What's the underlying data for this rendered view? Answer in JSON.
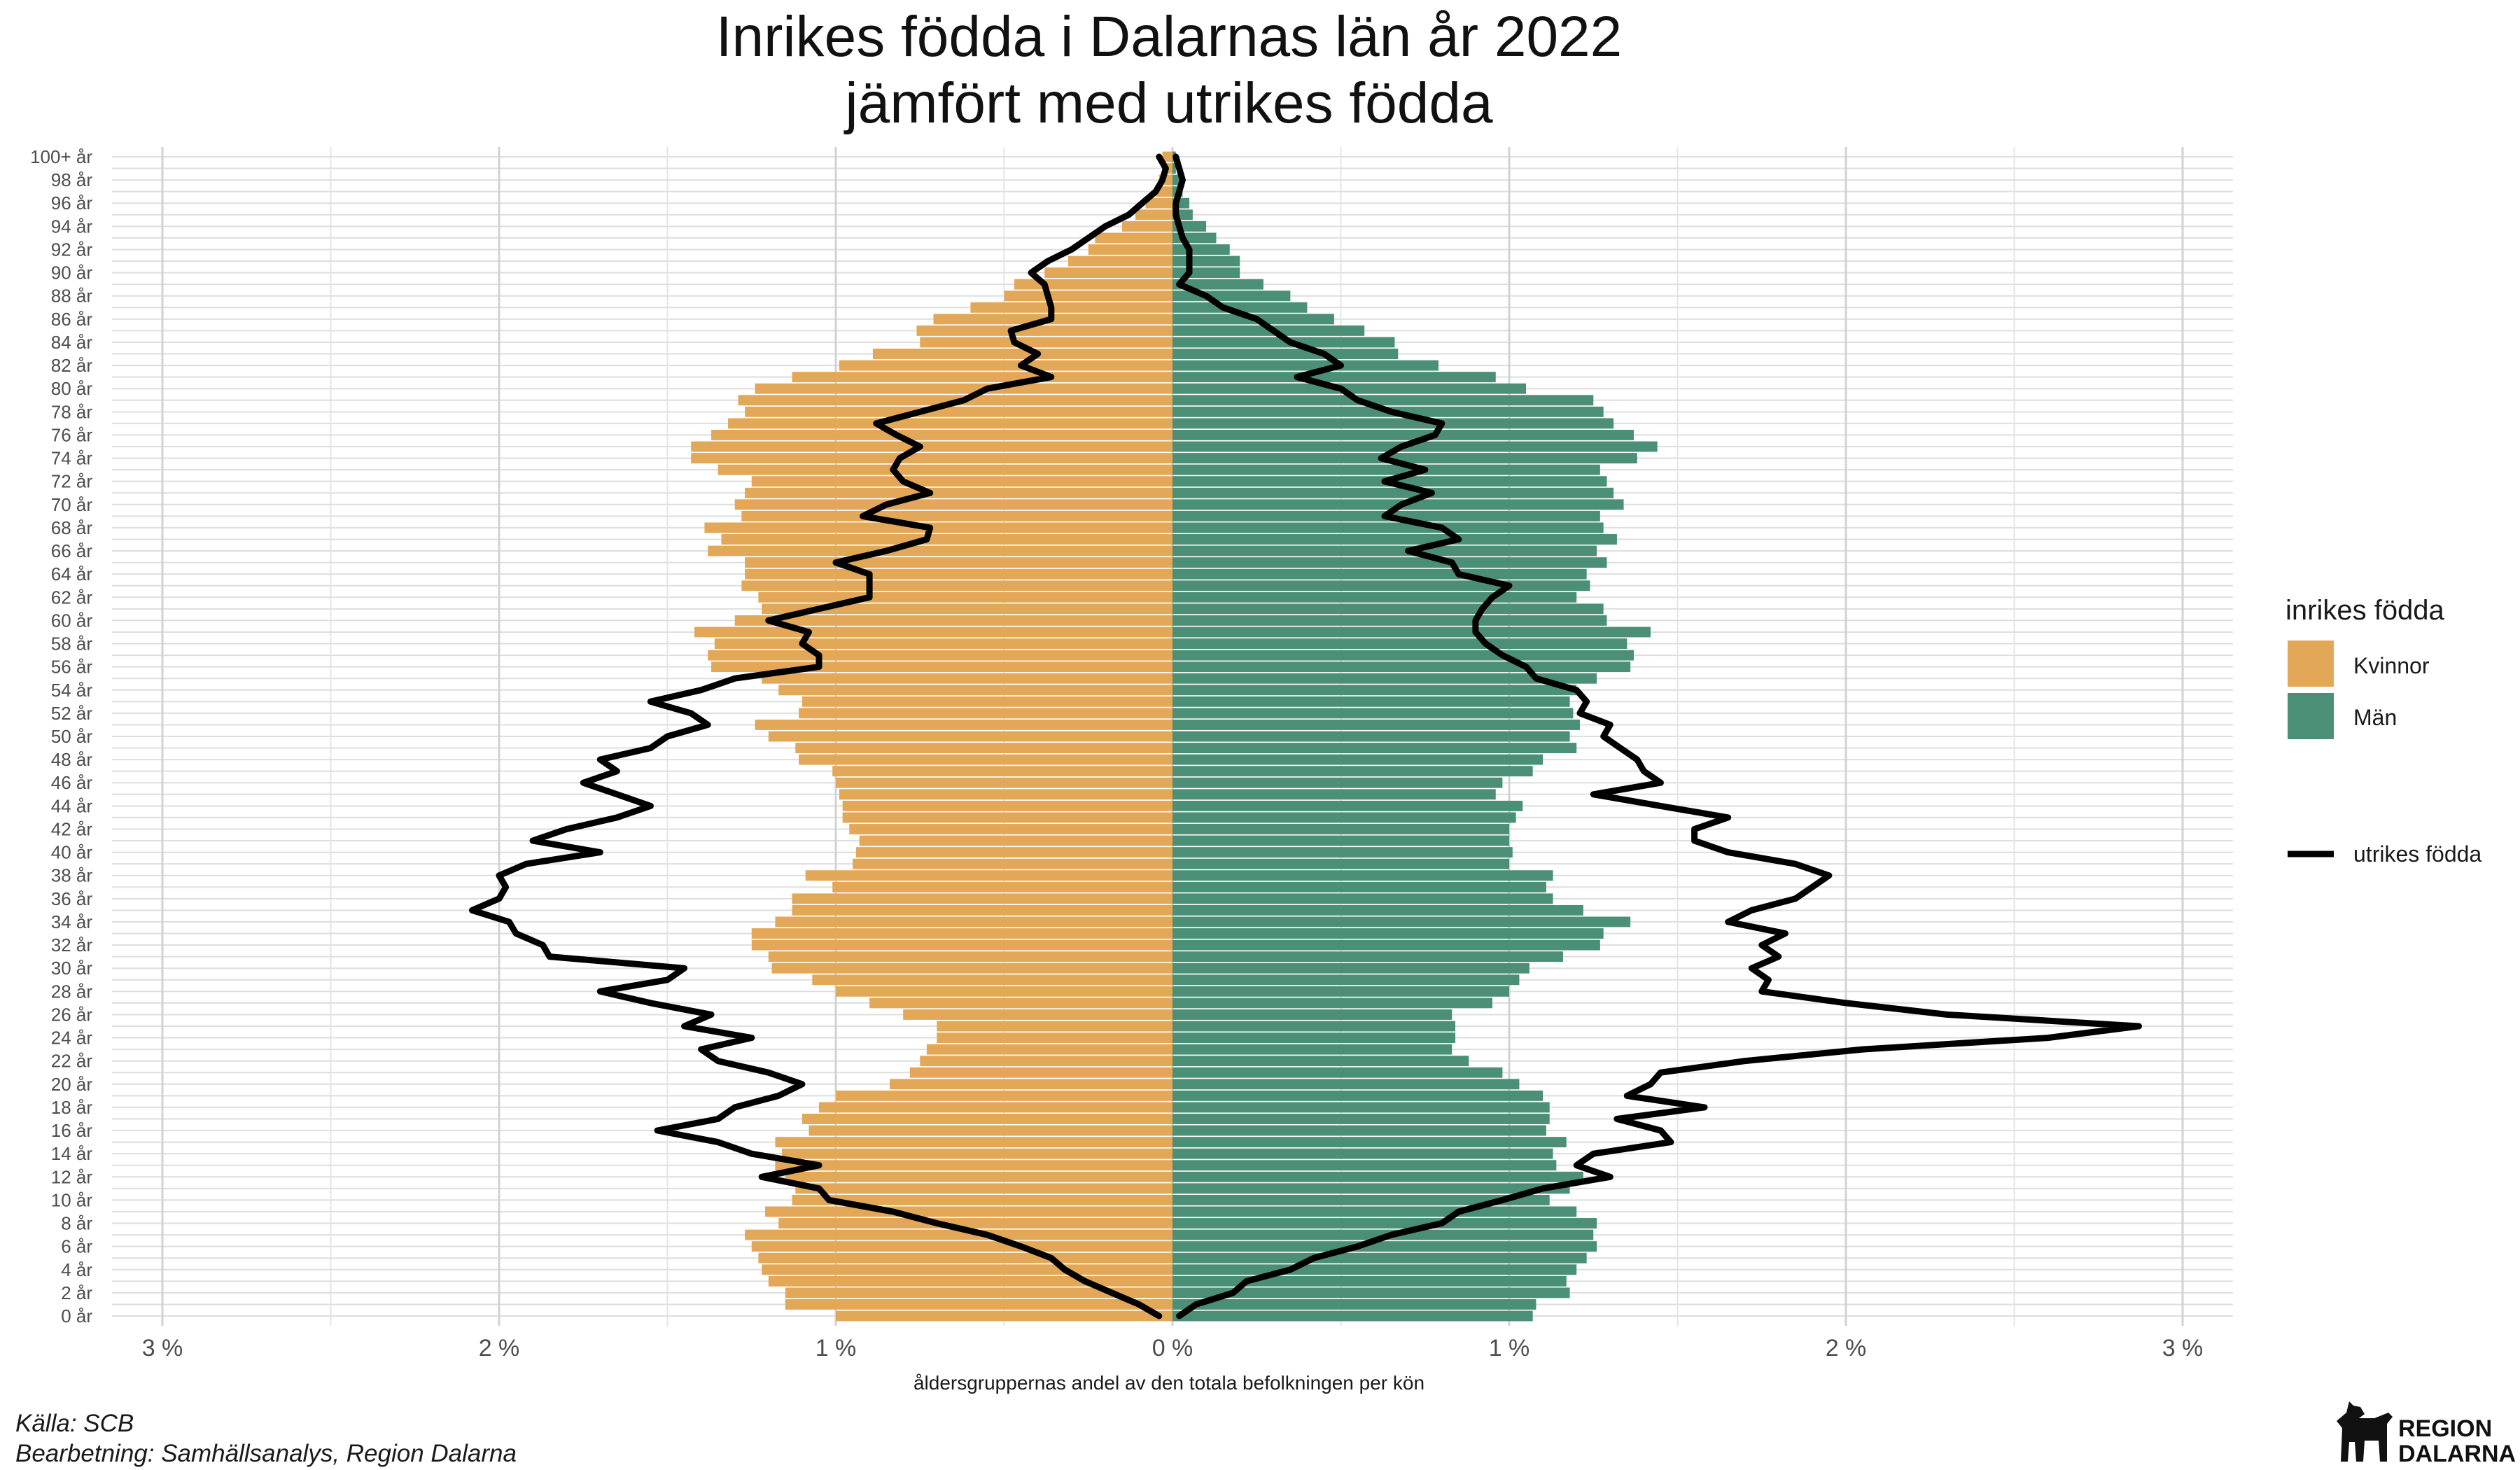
{
  "chart_data": {
    "type": "bar",
    "title": [
      "Inrikes födda i Dalarnas län år 2022",
      "jämfört med utrikes födda"
    ],
    "xlabel": "åldersgruppernas andel av den totala befolkningen per kön",
    "xlim": [
      -3,
      3
    ],
    "x_ticks": [
      -3,
      -2,
      -1,
      0,
      1,
      2,
      3
    ],
    "x_tick_labels": [
      "3 %",
      "2 %",
      "1 %",
      "0 %",
      "1 %",
      "2 %",
      "3 %"
    ],
    "y_tick_labels": [
      "0 år",
      "2 år",
      "4 år",
      "6 år",
      "8 år",
      "10 år",
      "12 år",
      "14 år",
      "16 år",
      "18 år",
      "20 år",
      "22 år",
      "24 år",
      "26 år",
      "28 år",
      "30 år",
      "32 år",
      "34 år",
      "36 år",
      "38 år",
      "40 år",
      "42 år",
      "44 år",
      "46 år",
      "48 år",
      "50 år",
      "52 år",
      "54 år",
      "56 år",
      "58 år",
      "60 år",
      "62 år",
      "64 år",
      "66 år",
      "68 år",
      "70 år",
      "72 år",
      "74 år",
      "76 år",
      "78 år",
      "80 år",
      "82 år",
      "84 år",
      "86 år",
      "88 år",
      "90 år",
      "92 år",
      "94 år",
      "96 år",
      "98 år",
      "100+ år"
    ],
    "ages": [
      0,
      1,
      2,
      3,
      4,
      5,
      6,
      7,
      8,
      9,
      10,
      11,
      12,
      13,
      14,
      15,
      16,
      17,
      18,
      19,
      20,
      21,
      22,
      23,
      24,
      25,
      26,
      27,
      28,
      29,
      30,
      31,
      32,
      33,
      34,
      35,
      36,
      37,
      38,
      39,
      40,
      41,
      42,
      43,
      44,
      45,
      46,
      47,
      48,
      49,
      50,
      51,
      52,
      53,
      54,
      55,
      56,
      57,
      58,
      59,
      60,
      61,
      62,
      63,
      64,
      65,
      66,
      67,
      68,
      69,
      70,
      71,
      72,
      73,
      74,
      75,
      76,
      77,
      78,
      79,
      80,
      81,
      82,
      83,
      84,
      85,
      86,
      87,
      88,
      89,
      90,
      91,
      92,
      93,
      94,
      95,
      96,
      97,
      98,
      99,
      100
    ],
    "legend_title": "inrikes födda",
    "series": [
      {
        "name": "Kvinnor",
        "color": "#E3A857",
        "values": [
          1.0,
          1.15,
          1.15,
          1.2,
          1.22,
          1.23,
          1.25,
          1.27,
          1.17,
          1.21,
          1.13,
          1.12,
          1.15,
          1.18,
          1.16,
          1.18,
          1.08,
          1.1,
          1.05,
          1.0,
          0.84,
          0.78,
          0.75,
          0.73,
          0.7,
          0.7,
          0.8,
          0.9,
          1.0,
          1.07,
          1.19,
          1.2,
          1.25,
          1.25,
          1.18,
          1.13,
          1.13,
          1.01,
          1.09,
          0.95,
          0.94,
          0.93,
          0.96,
          0.98,
          0.98,
          0.99,
          1.0,
          1.01,
          1.11,
          1.12,
          1.2,
          1.24,
          1.11,
          1.1,
          1.17,
          1.22,
          1.37,
          1.38,
          1.36,
          1.42,
          1.3,
          1.22,
          1.23,
          1.28,
          1.27,
          1.27,
          1.38,
          1.34,
          1.39,
          1.28,
          1.3,
          1.27,
          1.25,
          1.35,
          1.43,
          1.43,
          1.37,
          1.32,
          1.27,
          1.29,
          1.24,
          1.13,
          0.99,
          0.89,
          0.75,
          0.76,
          0.71,
          0.6,
          0.5,
          0.47,
          0.38,
          0.31,
          0.25,
          0.23,
          0.15,
          0.11,
          0.08,
          0.05,
          0.04,
          0.02,
          0.03
        ]
      },
      {
        "name": "Män",
        "color": "#4A8F76",
        "values": [
          1.07,
          1.08,
          1.18,
          1.17,
          1.2,
          1.23,
          1.26,
          1.25,
          1.26,
          1.2,
          1.12,
          1.18,
          1.22,
          1.14,
          1.13,
          1.17,
          1.11,
          1.12,
          1.12,
          1.1,
          1.03,
          0.98,
          0.88,
          0.83,
          0.84,
          0.84,
          0.83,
          0.95,
          1.0,
          1.03,
          1.06,
          1.16,
          1.27,
          1.28,
          1.36,
          1.22,
          1.13,
          1.11,
          1.13,
          1.0,
          1.01,
          1.0,
          1.0,
          1.02,
          1.04,
          0.96,
          0.98,
          1.07,
          1.1,
          1.2,
          1.18,
          1.21,
          1.19,
          1.18,
          1.2,
          1.26,
          1.36,
          1.37,
          1.35,
          1.42,
          1.29,
          1.28,
          1.2,
          1.24,
          1.23,
          1.29,
          1.26,
          1.32,
          1.28,
          1.27,
          1.34,
          1.31,
          1.29,
          1.27,
          1.38,
          1.44,
          1.37,
          1.31,
          1.28,
          1.25,
          1.05,
          0.96,
          0.79,
          0.67,
          0.66,
          0.57,
          0.48,
          0.4,
          0.35,
          0.27,
          0.2,
          0.2,
          0.17,
          0.13,
          0.1,
          0.06,
          0.05,
          0.03,
          0.02,
          0.01,
          0.01
        ]
      }
    ],
    "line_series": {
      "name": "utrikes födda",
      "color": "#000000",
      "women": [
        0.04,
        0.1,
        0.18,
        0.26,
        0.32,
        0.36,
        0.45,
        0.55,
        0.7,
        0.83,
        1.02,
        1.05,
        1.22,
        1.05,
        1.25,
        1.35,
        1.53,
        1.35,
        1.3,
        1.17,
        1.1,
        1.2,
        1.35,
        1.4,
        1.25,
        1.45,
        1.37,
        1.55,
        1.7,
        1.5,
        1.45,
        1.85,
        1.87,
        1.95,
        1.97,
        2.08,
        2.0,
        1.98,
        2.0,
        1.92,
        1.7,
        1.9,
        1.8,
        1.65,
        1.55,
        1.65,
        1.75,
        1.65,
        1.7,
        1.55,
        1.5,
        1.38,
        1.43,
        1.55,
        1.4,
        1.3,
        1.05,
        1.05,
        1.1,
        1.08,
        1.2,
        1.05,
        0.9,
        0.9,
        0.9,
        1.0,
        0.85,
        0.73,
        0.72,
        0.92,
        0.85,
        0.72,
        0.8,
        0.83,
        0.81,
        0.75,
        0.82,
        0.88,
        0.75,
        0.62,
        0.55,
        0.36,
        0.45,
        0.4,
        0.47,
        0.48,
        0.36,
        0.36,
        0.37,
        0.38,
        0.42,
        0.37,
        0.3,
        0.25,
        0.2,
        0.13,
        0.09,
        0.05,
        0.03,
        0.02,
        0.04
      ],
      "men": [
        0.02,
        0.07,
        0.18,
        0.22,
        0.35,
        0.42,
        0.55,
        0.65,
        0.8,
        0.85,
        0.98,
        1.1,
        1.3,
        1.2,
        1.25,
        1.48,
        1.45,
        1.32,
        1.58,
        1.35,
        1.42,
        1.45,
        1.7,
        2.05,
        2.6,
        2.87,
        2.3,
        2.0,
        1.75,
        1.77,
        1.72,
        1.8,
        1.75,
        1.82,
        1.65,
        1.72,
        1.85,
        1.9,
        1.95,
        1.85,
        1.65,
        1.55,
        1.55,
        1.65,
        1.45,
        1.25,
        1.45,
        1.4,
        1.38,
        1.33,
        1.28,
        1.3,
        1.21,
        1.23,
        1.2,
        1.08,
        1.05,
        0.98,
        0.93,
        0.9,
        0.9,
        0.92,
        0.95,
        1.0,
        0.85,
        0.83,
        0.7,
        0.85,
        0.8,
        0.63,
        0.68,
        0.77,
        0.63,
        0.75,
        0.62,
        0.68,
        0.78,
        0.8,
        0.65,
        0.55,
        0.5,
        0.37,
        0.5,
        0.45,
        0.35,
        0.3,
        0.25,
        0.15,
        0.1,
        0.02,
        0.05,
        0.05,
        0.05,
        0.03,
        0.02,
        0.01,
        0.01,
        0.02,
        0.03,
        0.02,
        0.01
      ]
    }
  },
  "legend": {
    "title": "inrikes födda",
    "items": [
      {
        "label": "Kvinnor",
        "color": "#E3A857"
      },
      {
        "label": "Män",
        "color": "#4A8F76"
      }
    ],
    "line_label": "utrikes födda"
  },
  "caption": {
    "source": "Källa: SCB",
    "processing": "Bearbetning: Samhällsanalys, Region Dalarna"
  },
  "logo": {
    "line1": "REGION",
    "line2": "DALARNA"
  }
}
